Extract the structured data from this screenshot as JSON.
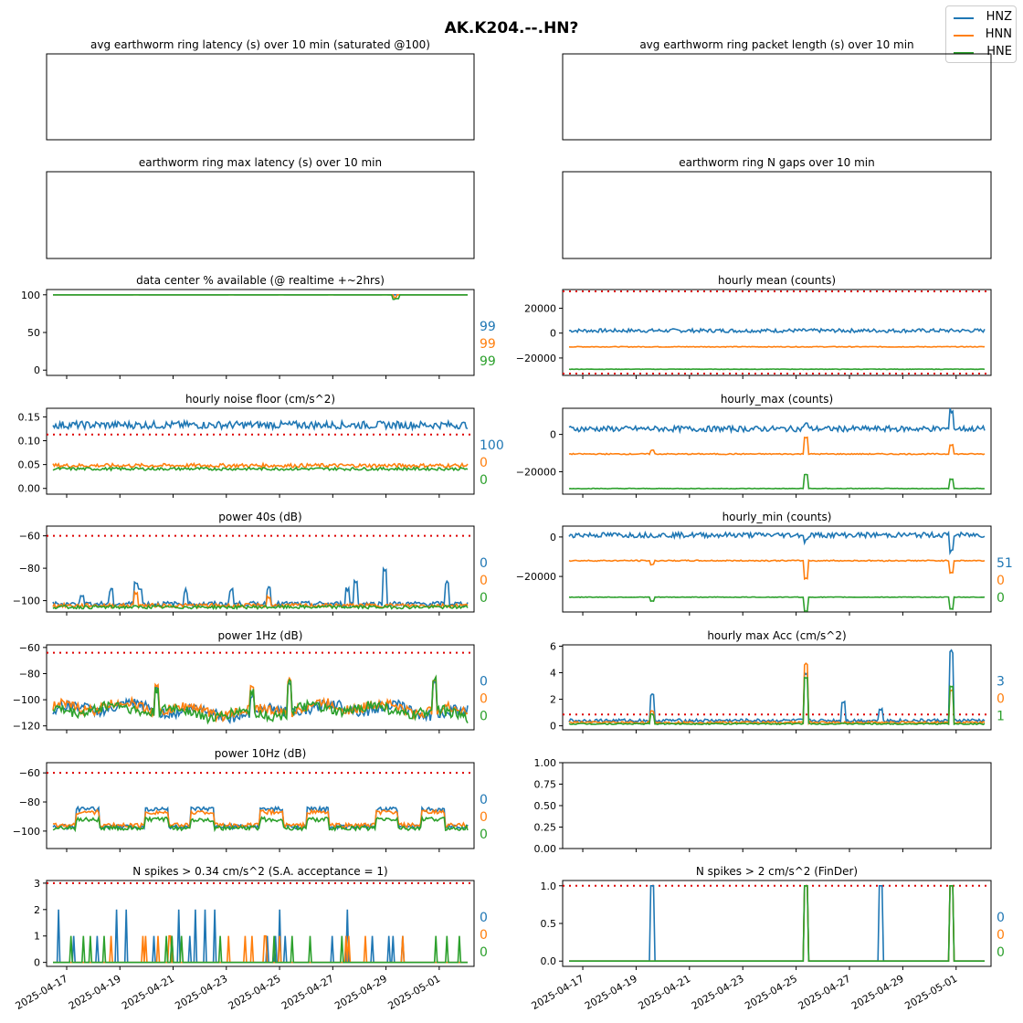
{
  "figure_title": "AK.K204.--.HN?",
  "legend": [
    "HNZ",
    "HNN",
    "HNE"
  ],
  "colors": {
    "HNZ": "#1f77b4",
    "HNN": "#ff7f0e",
    "HNE": "#2ca02c",
    "threshold": "#dd0000"
  },
  "x_ticks": [
    "2025-04-17",
    "2025-04-19",
    "2025-04-21",
    "2025-04-23",
    "2025-04-25",
    "2025-04-27",
    "2025-04-29",
    "2025-05-01"
  ],
  "chart_data": [
    {
      "id": "p0",
      "type": "line",
      "title": "avg earthworm ring latency (s)   over 10 min (saturated @100)",
      "series": [],
      "empty": true
    },
    {
      "id": "p1",
      "type": "line",
      "title": "avg earthworm ring packet length (s)   over 10 min",
      "series": [],
      "empty": true
    },
    {
      "id": "p2",
      "type": "line",
      "title": "earthworm ring max latency (s)   over 10 min",
      "series": [],
      "empty": true
    },
    {
      "id": "p3",
      "type": "line",
      "title": "earthworm ring N gaps   over 10 min",
      "series": [],
      "empty": true
    },
    {
      "id": "p4",
      "type": "line",
      "title": "data center % available (@ realtime +~2hrs)",
      "ylim": [
        -7,
        107
      ],
      "yticks": [
        "0",
        "50",
        "100"
      ],
      "yticks_v": [
        0,
        50,
        100
      ],
      "threshold": null,
      "stats": [
        "99",
        "99",
        "99"
      ],
      "series": [
        {
          "name": "HNZ",
          "level": 100,
          "noise": 0,
          "gaps": [
            0.2,
            0.43,
            0.55,
            0.67,
            0.8
          ]
        },
        {
          "name": "HNN",
          "level": 100,
          "noise": 0,
          "spikes": [
            [
              0.825,
              -4
            ]
          ]
        },
        {
          "name": "HNE",
          "level": 100,
          "noise": 0,
          "spikes": [
            [
              0.822,
              -6
            ],
            [
              0.83,
              -5
            ]
          ]
        }
      ]
    },
    {
      "id": "p5",
      "type": "line",
      "title": "hourly mean (counts)",
      "ylim": [
        -34000,
        35000
      ],
      "yticks": [
        "−20000",
        "0",
        "20000"
      ],
      "yticks_v": [
        -20000,
        0,
        20000
      ],
      "threshold": [
        -32500,
        33500
      ],
      "stats": null,
      "series": [
        {
          "name": "HNZ",
          "level": 2000,
          "noise": 1500
        },
        {
          "name": "HNN",
          "level": -11000,
          "noise": 300
        },
        {
          "name": "HNE",
          "level": -29000,
          "noise": 150
        }
      ]
    },
    {
      "id": "p6",
      "type": "line",
      "title": "hourly noise floor (cm/s^2)",
      "ylim": [
        -0.012,
        0.168
      ],
      "yticks": [
        "0.00",
        "0.05",
        "0.10",
        "0.15"
      ],
      "yticks_v": [
        0,
        0.05,
        0.1,
        0.15
      ],
      "threshold": [
        0.113
      ],
      "stats": [
        "100",
        "0",
        "0"
      ],
      "series": [
        {
          "name": "HNZ",
          "level": 0.133,
          "noise": 0.008
        },
        {
          "name": "HNN",
          "level": 0.048,
          "noise": 0.004
        },
        {
          "name": "HNE",
          "level": 0.041,
          "noise": 0.003
        }
      ]
    },
    {
      "id": "p7",
      "type": "line",
      "title": "hourly_max (counts)",
      "ylim": [
        -32000,
        14000
      ],
      "yticks": [
        "−20000",
        "0"
      ],
      "yticks_v": [
        -20000,
        0
      ],
      "threshold": null,
      "stats": null,
      "series": [
        {
          "name": "HNZ",
          "level": 3000,
          "noise": 1500,
          "spikes": [
            [
              0.57,
              3000
            ],
            [
              0.92,
              10000
            ]
          ]
        },
        {
          "name": "HNN",
          "level": -10500,
          "noise": 300,
          "spikes": [
            [
              0.57,
              9000
            ],
            [
              0.92,
              5000
            ],
            [
              0.2,
              2000
            ]
          ]
        },
        {
          "name": "HNE",
          "level": -29000,
          "noise": 150,
          "spikes": [
            [
              0.57,
              7500
            ],
            [
              0.92,
              5000
            ]
          ]
        }
      ]
    },
    {
      "id": "p8",
      "type": "line",
      "title": "power 40s (dB)",
      "ylim": [
        -107,
        -54
      ],
      "yticks": [
        "−100",
        "−80",
        "−60"
      ],
      "yticks_v": [
        -100,
        -80,
        -60
      ],
      "threshold": [
        -60
      ],
      "stats": [
        "0",
        "0",
        "0"
      ],
      "series": [
        {
          "name": "HNZ",
          "level": -102,
          "noise": 1.5,
          "spikes": [
            [
              0.07,
              6
            ],
            [
              0.14,
              8
            ],
            [
              0.21,
              9
            ],
            [
              0.2,
              14
            ],
            [
              0.32,
              8
            ],
            [
              0.43,
              9
            ],
            [
              0.52,
              10
            ],
            [
              0.71,
              9
            ],
            [
              0.73,
              14
            ],
            [
              0.8,
              21
            ],
            [
              0.95,
              13
            ]
          ]
        },
        {
          "name": "HNN",
          "level": -103,
          "noise": 1.2,
          "spikes": [
            [
              0.2,
              8
            ],
            [
              0.52,
              5
            ]
          ]
        },
        {
          "name": "HNE",
          "level": -104,
          "noise": 1
        },
        "series_end"
      ]
    },
    {
      "id": "p9",
      "type": "line",
      "title": "hourly_min (counts)",
      "ylim": [
        -38000,
        5500
      ],
      "yticks": [
        "−20000",
        "0"
      ],
      "yticks_v": [
        -20000,
        0
      ],
      "threshold": null,
      "stats": [
        "51",
        "0",
        "0"
      ],
      "series": [
        {
          "name": "HNZ",
          "level": 1000,
          "noise": 1300,
          "spikes": [
            [
              0.57,
              -3000
            ],
            [
              0.92,
              -8000
            ]
          ]
        },
        {
          "name": "HNN",
          "level": -12000,
          "noise": 300,
          "spikes": [
            [
              0.57,
              -9000
            ],
            [
              0.92,
              -6000
            ],
            [
              0.2,
              -2000
            ]
          ]
        },
        {
          "name": "HNE",
          "level": -30500,
          "noise": 150,
          "spikes": [
            [
              0.57,
              -7000
            ],
            [
              0.92,
              -6000
            ],
            [
              0.2,
              -2000
            ]
          ]
        }
      ]
    },
    {
      "id": "p10",
      "type": "line",
      "title": "power 1Hz (dB)",
      "ylim": [
        -123,
        -58
      ],
      "yticks": [
        "−120",
        "−100",
        "−80",
        "−60"
      ],
      "yticks_v": [
        -120,
        -100,
        -80,
        -60
      ],
      "threshold": [
        -64
      ],
      "stats": [
        "0",
        "0",
        "0"
      ],
      "series": [
        {
          "name": "HNZ",
          "level": -108,
          "noise": 4,
          "wave": 6,
          "spikes": [
            [
              0.25,
              18
            ],
            [
              0.48,
              14
            ],
            [
              0.57,
              25
            ],
            [
              0.92,
              26
            ]
          ]
        },
        {
          "name": "HNN",
          "level": -107,
          "noise": 4,
          "wave": 6,
          "spikes": [
            [
              0.25,
              18
            ],
            [
              0.48,
              14
            ],
            [
              0.57,
              25
            ],
            [
              0.92,
              26
            ]
          ]
        },
        {
          "name": "HNE",
          "level": -109,
          "noise": 4,
          "wave": 6,
          "spikes": [
            [
              0.25,
              18
            ],
            [
              0.48,
              14
            ],
            [
              0.57,
              25
            ],
            [
              0.92,
              26
            ]
          ]
        }
      ]
    },
    {
      "id": "p11",
      "type": "line",
      "title": "hourly max Acc (cm/s^2)",
      "ylim": [
        -0.3,
        6.1
      ],
      "yticks": [
        "0",
        "2",
        "4",
        "6"
      ],
      "yticks_v": [
        0,
        2,
        4,
        6
      ],
      "threshold": [
        0.85
      ],
      "stats": [
        "3",
        "0",
        "1"
      ],
      "series": [
        {
          "name": "HNZ",
          "level": 0.4,
          "noise": 0.12,
          "spikes": [
            [
              0.2,
              1.9
            ],
            [
              0.57,
              3.5
            ],
            [
              0.92,
              5.2
            ],
            [
              0.66,
              1.4
            ],
            [
              0.75,
              0.9
            ]
          ]
        },
        {
          "name": "HNN",
          "level": 0.25,
          "noise": 0.08,
          "spikes": [
            [
              0.2,
              0.8
            ],
            [
              0.57,
              4.4
            ],
            [
              0.92,
              2.4
            ]
          ]
        },
        {
          "name": "HNE",
          "level": 0.15,
          "noise": 0.05,
          "spikes": [
            [
              0.2,
              0.7
            ],
            [
              0.57,
              3.5
            ],
            [
              0.92,
              2.8
            ]
          ]
        }
      ]
    },
    {
      "id": "p12",
      "type": "line",
      "title": "power 10Hz (dB)",
      "ylim": [
        -112,
        -53
      ],
      "yticks": [
        "−100",
        "−80",
        "−60"
      ],
      "yticks_v": [
        -100,
        -80,
        -60
      ],
      "threshold": [
        -60
      ],
      "stats": [
        "0",
        "0",
        "0"
      ],
      "series": [
        {
          "name": "HNZ",
          "level": -97,
          "noise": 1.5,
          "blocks": true
        },
        {
          "name": "HNN",
          "level": -96,
          "noise": 1.5,
          "blocks": true
        },
        {
          "name": "HNE",
          "level": -98,
          "noise": 1.5,
          "blocks": true
        }
      ]
    },
    {
      "id": "p13",
      "type": "line",
      "title": "",
      "ylim": [
        0,
        1
      ],
      "yticks": [
        "0.00",
        "0.25",
        "0.50",
        "0.75",
        "1.00"
      ],
      "yticks_v": [
        0,
        0.25,
        0.5,
        0.75,
        1
      ],
      "threshold": null,
      "stats": null,
      "series": []
    },
    {
      "id": "p14",
      "type": "line",
      "title": "N spikes > 0.34 cm/s^2 (S.A. acceptance = 1)",
      "ylim": [
        -0.15,
        3.1
      ],
      "yticks": [
        "0",
        "1",
        "2",
        "3"
      ],
      "yticks_v": [
        0,
        1,
        2,
        3
      ],
      "threshold": [
        3
      ],
      "stats": [
        "0",
        "0",
        "0"
      ],
      "series": [
        {
          "name": "HNZ",
          "level": 0,
          "noise": 0,
          "spiky": 2
        },
        {
          "name": "HNN",
          "level": 0,
          "noise": 0,
          "spiky": 1
        },
        {
          "name": "HNE",
          "level": 0,
          "noise": 0,
          "spiky": 1
        }
      ]
    },
    {
      "id": "p15",
      "type": "line",
      "title": "N spikes > 2 cm/s^2 (FinDer)",
      "ylim": [
        -0.07,
        1.07
      ],
      "yticks": [
        "0.0",
        "0.5",
        "1.0"
      ],
      "yticks_v": [
        0,
        0.5,
        1
      ],
      "threshold": [
        1
      ],
      "stats": [
        "0",
        "0",
        "0"
      ],
      "series": [
        {
          "name": "HNZ",
          "level": 0,
          "noise": 0,
          "spikes": [
            [
              0.2,
              1
            ],
            [
              0.57,
              1
            ],
            [
              0.75,
              1
            ],
            [
              0.92,
              1
            ]
          ]
        },
        {
          "name": "HNN",
          "level": 0,
          "noise": 0,
          "spikes": [
            [
              0.57,
              1
            ],
            [
              0.92,
              1
            ]
          ]
        },
        {
          "name": "HNE",
          "level": 0,
          "noise": 0,
          "spikes": [
            [
              0.57,
              1
            ],
            [
              0.92,
              1
            ]
          ]
        }
      ]
    }
  ]
}
